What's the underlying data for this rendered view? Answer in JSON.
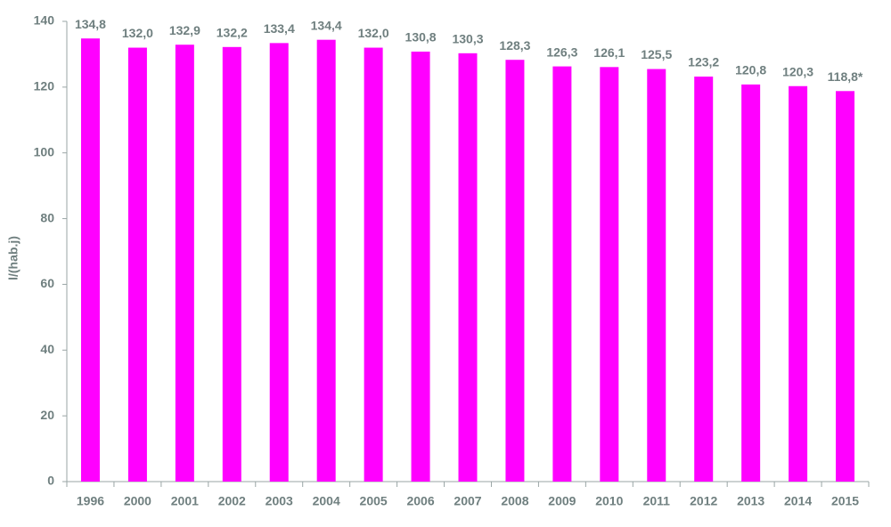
{
  "chart_data": {
    "type": "bar",
    "y_label": "l/(hab.j)",
    "categories": [
      "1996",
      "2000",
      "2001",
      "2002",
      "2003",
      "2004",
      "2005",
      "2006",
      "2007",
      "2008",
      "2009",
      "2010",
      "2011",
      "2012",
      "2013",
      "2014",
      "2015"
    ],
    "values": [
      134.8,
      132.0,
      132.9,
      132.2,
      133.4,
      134.4,
      132.0,
      130.8,
      130.3,
      128.3,
      126.3,
      126.1,
      125.5,
      123.2,
      120.8,
      120.3,
      118.8
    ],
    "value_labels": [
      "134,8",
      "132,0",
      "132,9",
      "132,2",
      "133,4",
      "134,4",
      "132,0",
      "130,8",
      "130,3",
      "128,3",
      "126,3",
      "126,1",
      "125,5",
      "123,2",
      "120,8",
      "120,3",
      "118,8*"
    ],
    "color": "#ff00ff",
    "ylim": [
      0,
      140
    ],
    "yticks": [
      0,
      20,
      40,
      60,
      80,
      100,
      120,
      140
    ],
    "grid": false
  }
}
